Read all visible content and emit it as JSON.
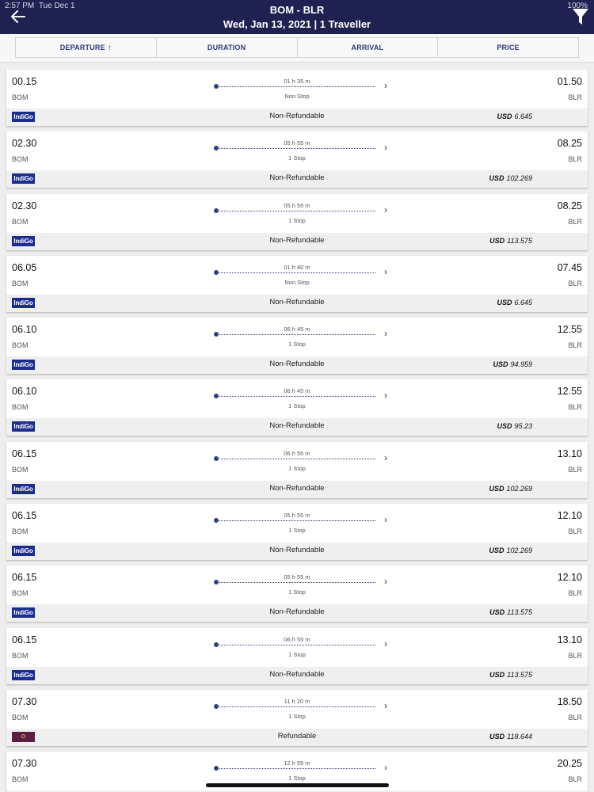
{
  "status": {
    "time": "2:57 PM",
    "date": "Tue Dec 1",
    "battery": "100%"
  },
  "header": {
    "route": "BOM - BLR",
    "subtitle": "Wed, Jan 13, 2021 | 1 Traveller"
  },
  "sort": {
    "tabs": [
      {
        "label": "DEPARTURE",
        "arrow": "↑"
      },
      {
        "label": "DURATION",
        "arrow": ""
      },
      {
        "label": "ARRIVAL",
        "arrow": ""
      },
      {
        "label": "PRICE",
        "arrow": ""
      }
    ]
  },
  "flights": [
    {
      "dep_time": "00.15",
      "dep_city": "BOM",
      "duration": "01 h 35 m",
      "stops": "Non Stop",
      "arr_time": "01.50",
      "arr_city": "BLR",
      "airline_logo": "IndiGo",
      "refund": "Non-Refundable",
      "currency": "USD",
      "price": "6.645"
    },
    {
      "dep_time": "02.30",
      "dep_city": "BOM",
      "duration": "05 h 55 m",
      "stops": "1 Stop",
      "arr_time": "08.25",
      "arr_city": "BLR",
      "airline_logo": "IndiGo",
      "refund": "Non-Refundable",
      "currency": "USD",
      "price": "102.269"
    },
    {
      "dep_time": "02.30",
      "dep_city": "BOM",
      "duration": "05 h 55 m",
      "stops": "1 Stop",
      "arr_time": "08.25",
      "arr_city": "BLR",
      "airline_logo": "IndiGo",
      "refund": "Non-Refundable",
      "currency": "USD",
      "price": "113.575"
    },
    {
      "dep_time": "06.05",
      "dep_city": "BOM",
      "duration": "01 h 40 m",
      "stops": "Non Stop",
      "arr_time": "07.45",
      "arr_city": "BLR",
      "airline_logo": "IndiGo",
      "refund": "Non-Refundable",
      "currency": "USD",
      "price": "6.645"
    },
    {
      "dep_time": "06.10",
      "dep_city": "BOM",
      "duration": "06 h 45 m",
      "stops": "1 Stop",
      "arr_time": "12.55",
      "arr_city": "BLR",
      "airline_logo": "IndiGo",
      "refund": "Non-Refundable",
      "currency": "USD",
      "price": "94.959"
    },
    {
      "dep_time": "06.10",
      "dep_city": "BOM",
      "duration": "06 h 45 m",
      "stops": "1 Stop",
      "arr_time": "12.55",
      "arr_city": "BLR",
      "airline_logo": "IndiGo",
      "refund": "Non-Refundable",
      "currency": "USD",
      "price": "95.23"
    },
    {
      "dep_time": "06.15",
      "dep_city": "BOM",
      "duration": "06 h 55 m",
      "stops": "1 Stop",
      "arr_time": "13.10",
      "arr_city": "BLR",
      "airline_logo": "IndiGo",
      "refund": "Non-Refundable",
      "currency": "USD",
      "price": "102.269"
    },
    {
      "dep_time": "06.15",
      "dep_city": "BOM",
      "duration": "05 h 55 m",
      "stops": "1 Stop",
      "arr_time": "12.10",
      "arr_city": "BLR",
      "airline_logo": "IndiGo",
      "refund": "Non-Refundable",
      "currency": "USD",
      "price": "102.269"
    },
    {
      "dep_time": "06.15",
      "dep_city": "BOM",
      "duration": "05 h 55 m",
      "stops": "1 Stop",
      "arr_time": "12.10",
      "arr_city": "BLR",
      "airline_logo": "IndiGo",
      "refund": "Non-Refundable",
      "currency": "USD",
      "price": "113.575"
    },
    {
      "dep_time": "06.15",
      "dep_city": "BOM",
      "duration": "06 h 55 m",
      "stops": "1 Stop",
      "arr_time": "13.10",
      "arr_city": "BLR",
      "airline_logo": "IndiGo",
      "refund": "Non-Refundable",
      "currency": "USD",
      "price": "113.575"
    },
    {
      "dep_time": "07.30",
      "dep_city": "BOM",
      "duration": "11 h 20 m",
      "stops": "1 Stop",
      "arr_time": "18.50",
      "arr_city": "BLR",
      "airline_logo": "",
      "refund": "Refundable",
      "currency": "USD",
      "price": "118.644"
    },
    {
      "dep_time": "07.30",
      "dep_city": "BOM",
      "duration": "12 h 55 m",
      "stops": "1 Stop",
      "arr_time": "20.25",
      "arr_city": "BLR",
      "airline_logo": "",
      "refund": "",
      "currency": "",
      "price": ""
    }
  ],
  "icons": {
    "back": "arrow-left-icon",
    "filter": "filter-funnel-icon"
  },
  "colors": {
    "header_bg": "#1f2150",
    "accent": "#2e3f82",
    "indigo_brand": "#1d2c8f"
  }
}
